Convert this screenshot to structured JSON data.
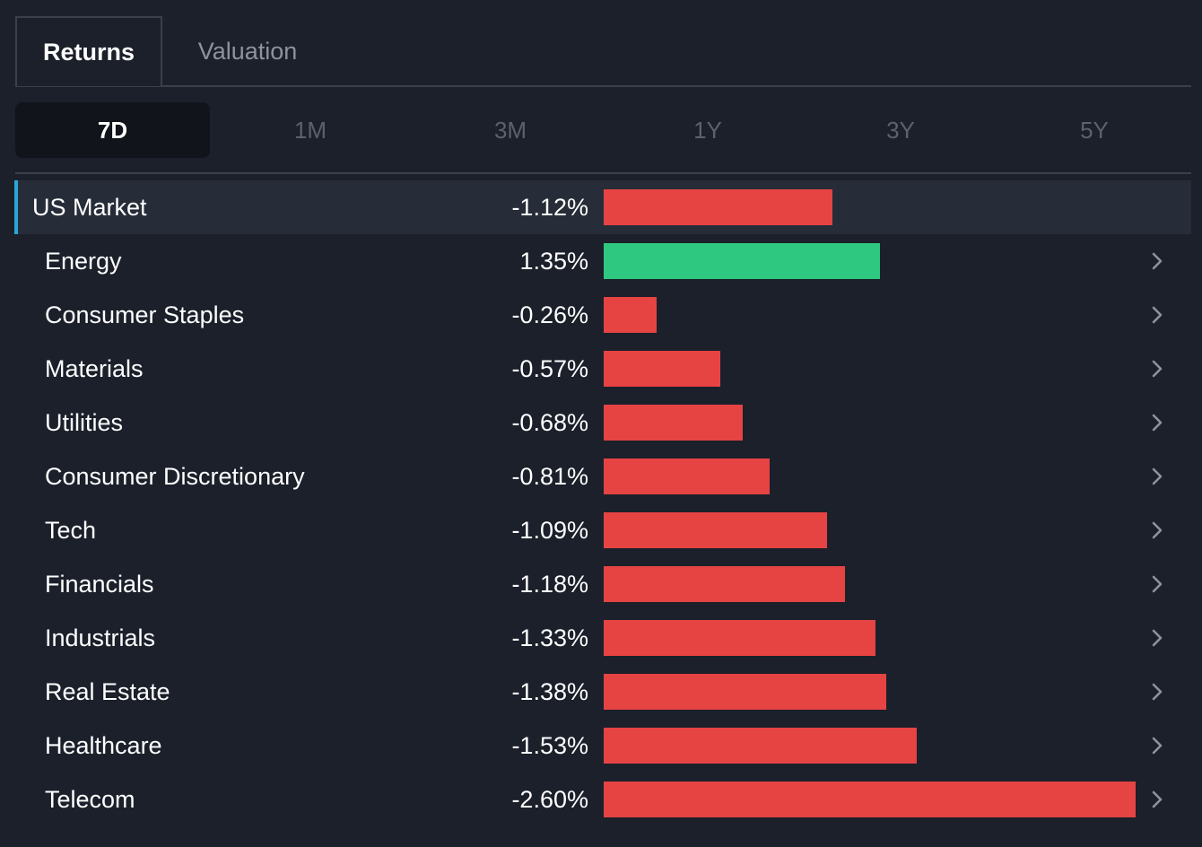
{
  "tabs": {
    "returns_label": "Returns",
    "valuation_label": "Valuation"
  },
  "periods": [
    "7D",
    "1M",
    "3M",
    "1Y",
    "3Y",
    "5Y"
  ],
  "selected_period": "7D",
  "colors": {
    "negative": "#e64343",
    "positive": "#2ec880",
    "highlight_accent": "#2aa8d8"
  },
  "chart_data": {
    "type": "bar",
    "orientation": "horizontal",
    "categories": [
      "US Market",
      "Energy",
      "Consumer Staples",
      "Materials",
      "Utilities",
      "Consumer Discretionary",
      "Tech",
      "Financials",
      "Industrials",
      "Real Estate",
      "Healthcare",
      "Telecom"
    ],
    "values": [
      -1.12,
      1.35,
      -0.26,
      -0.57,
      -0.68,
      -0.81,
      -1.09,
      -1.18,
      -1.33,
      -1.38,
      -1.53,
      -2.6
    ],
    "value_labels": [
      "-1.12%",
      "1.35%",
      "-0.26%",
      "-0.57%",
      "-0.68%",
      "-0.81%",
      "-1.09%",
      "-1.18%",
      "-1.33%",
      "-1.38%",
      "-1.53%",
      "-2.60%"
    ],
    "highlighted": "US Market",
    "grid": false
  }
}
